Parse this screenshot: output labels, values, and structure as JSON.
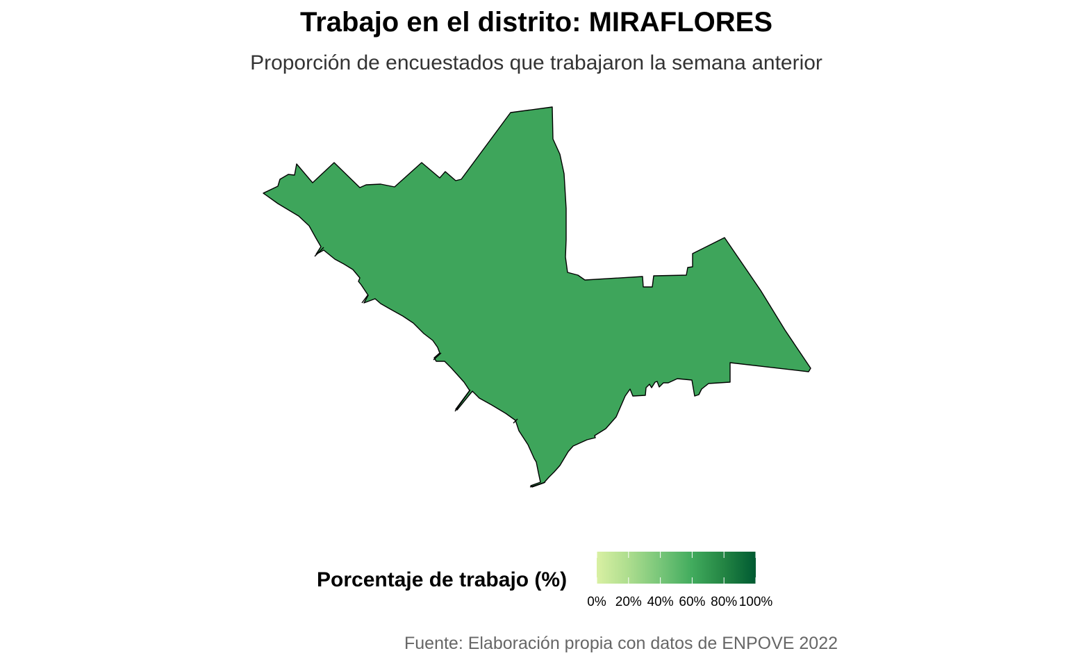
{
  "title": "Trabajo en el distrito: MIRAFLORES",
  "subtitle": "Proporción de encuestados que trabajaron la semana anterior",
  "legend": {
    "title": "Porcentaje de trabajo (%)",
    "ticks": [
      "0%",
      "20%",
      "40%",
      "60%",
      "80%",
      "100%"
    ],
    "colors": [
      "#d9f0a3",
      "#addd8e",
      "#78c679",
      "#41ab5d",
      "#238443",
      "#005a32"
    ]
  },
  "source": "Fuente: Elaboración propia con datos de ENPOVE 2022",
  "map": {
    "district": "MIRAFLORES",
    "fill_color": "#3ea55b",
    "stroke_color": "#000000",
    "scale_min": 0,
    "scale_max": 100
  }
}
